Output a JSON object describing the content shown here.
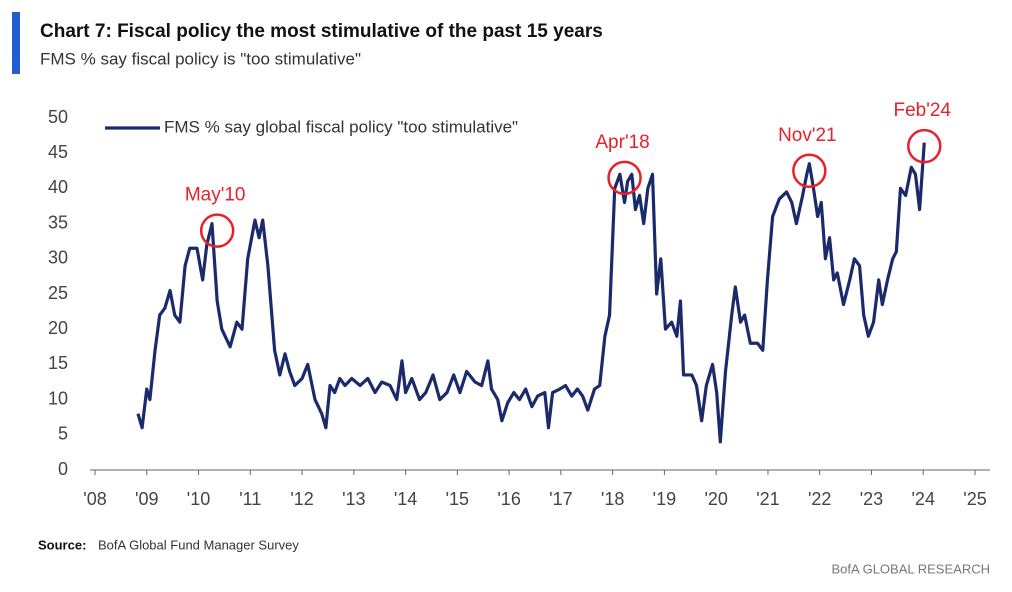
{
  "chart_data": {
    "type": "line",
    "title": "Chart 7: Fiscal policy the most stimulative of the past 15 years",
    "subtitle": "FMS % say fiscal policy is \"too stimulative\"",
    "source_label": "Source:",
    "source": "BofA Global Fund Manager Survey",
    "brand": "BofA GLOBAL RESEARCH",
    "legend": "top-left",
    "xlim": [
      2008,
      2025
    ],
    "xticks": [
      {
        "value": 2008,
        "label": "'08"
      },
      {
        "value": 2009,
        "label": "'09"
      },
      {
        "value": 2010,
        "label": "'10"
      },
      {
        "value": 2011,
        "label": "'11"
      },
      {
        "value": 2012,
        "label": "'12"
      },
      {
        "value": 2013,
        "label": "'13"
      },
      {
        "value": 2014,
        "label": "'14"
      },
      {
        "value": 2015,
        "label": "'15"
      },
      {
        "value": 2016,
        "label": "'16"
      },
      {
        "value": 2017,
        "label": "'17"
      },
      {
        "value": 2018,
        "label": "'18"
      },
      {
        "value": 2019,
        "label": "'19"
      },
      {
        "value": 2020,
        "label": "'20"
      },
      {
        "value": 2021,
        "label": "'21"
      },
      {
        "value": 2022,
        "label": "'22"
      },
      {
        "value": 2023,
        "label": "'23"
      },
      {
        "value": 2024,
        "label": "'24"
      },
      {
        "value": 2025,
        "label": "'25"
      }
    ],
    "ylim": [
      0,
      50
    ],
    "yticks": [
      0,
      5,
      10,
      15,
      20,
      25,
      30,
      35,
      40,
      45,
      50
    ],
    "x": [
      2008.83,
      2008.91,
      2009.0,
      2009.06,
      2009.16,
      2009.25,
      2009.35,
      2009.45,
      2009.54,
      2009.64,
      2009.74,
      2009.83,
      2009.97,
      2010.08,
      2010.16,
      2010.26,
      2010.36,
      2010.45,
      2010.61,
      2010.74,
      2010.84,
      2010.95,
      2011.09,
      2011.17,
      2011.24,
      2011.34,
      2011.47,
      2011.57,
      2011.67,
      2011.76,
      2011.86,
      2012.0,
      2012.11,
      2012.25,
      2012.38,
      2012.46,
      2012.54,
      2012.63,
      2012.73,
      2012.83,
      2012.96,
      2013.12,
      2013.27,
      2013.41,
      2013.54,
      2013.7,
      2013.83,
      2013.93,
      2014.0,
      2014.12,
      2014.27,
      2014.39,
      2014.53,
      2014.66,
      2014.8,
      2014.93,
      2015.05,
      2015.18,
      2015.34,
      2015.47,
      2015.59,
      2015.66,
      2015.78,
      2015.86,
      2015.97,
      2016.09,
      2016.2,
      2016.32,
      2016.44,
      2016.55,
      2016.69,
      2016.76,
      2016.84,
      2016.98,
      2017.09,
      2017.21,
      2017.32,
      2017.42,
      2017.52,
      2017.65,
      2017.75,
      2017.85,
      2017.94,
      2018.04,
      2018.14,
      2018.23,
      2018.29,
      2018.37,
      2018.44,
      2018.52,
      2018.6,
      2018.68,
      2018.77,
      2018.85,
      2018.93,
      2019.02,
      2019.14,
      2019.24,
      2019.31,
      2019.37,
      2019.53,
      2019.62,
      2019.72,
      2019.81,
      2019.93,
      2020.01,
      2020.08,
      2020.18,
      2020.3,
      2020.37,
      2020.47,
      2020.55,
      2020.66,
      2020.8,
      2020.9,
      2020.99,
      2021.09,
      2021.22,
      2021.36,
      2021.46,
      2021.55,
      2021.67,
      2021.75,
      2021.8,
      2021.88,
      2021.96,
      2022.03,
      2022.11,
      2022.19,
      2022.27,
      2022.34,
      2022.46,
      2022.58,
      2022.67,
      2022.77,
      2022.85,
      2022.94,
      2023.04,
      2023.14,
      2023.21,
      2023.31,
      2023.41,
      2023.48,
      2023.56,
      2023.66,
      2023.77,
      2023.85,
      2023.93,
      2024.02
    ],
    "series": [
      {
        "name": "FMS % say global fiscal policy \"too stimulative\"",
        "color": "#1b2a6b",
        "values": [
          8,
          6,
          11.5,
          10,
          17,
          22,
          23,
          25.5,
          22,
          21,
          29,
          31.5,
          31.5,
          27,
          32,
          35,
          24,
          20,
          17.5,
          21,
          20,
          30,
          35.5,
          33,
          35.5,
          29,
          17,
          13.5,
          16.5,
          14,
          12,
          13,
          15,
          10,
          8,
          6,
          12,
          11,
          13,
          12,
          13,
          12,
          13,
          11,
          12.5,
          12,
          10,
          15.5,
          11,
          13,
          10,
          11,
          13.5,
          10,
          11,
          13.5,
          11,
          14,
          12.5,
          12,
          15.5,
          11.5,
          10,
          7,
          9.5,
          11,
          10,
          11.5,
          9,
          10.5,
          11,
          6,
          11,
          11.5,
          12,
          10.5,
          11.5,
          10.5,
          8.5,
          11.5,
          12,
          19,
          22,
          40,
          42,
          38,
          41,
          42,
          37,
          39,
          35,
          40,
          42,
          25,
          30,
          20,
          21,
          19,
          24,
          13.5,
          13.5,
          12,
          7,
          12,
          15,
          11,
          4,
          14,
          22,
          26,
          21,
          22,
          18,
          18,
          17,
          27,
          36,
          38.5,
          39.5,
          38,
          35,
          39,
          42,
          43.5,
          40,
          36,
          38,
          30,
          33,
          27,
          28,
          23.5,
          27,
          30,
          29,
          22,
          19,
          21,
          27,
          23.5,
          27,
          30,
          31,
          40,
          39,
          43,
          42,
          37,
          46.5
        ]
      }
    ],
    "annotations": [
      {
        "text": "May'10",
        "x": 2010.36,
        "y": 34
      },
      {
        "text": "Apr'18",
        "x": 2018.23,
        "y": 41.5
      },
      {
        "text": "Nov'21",
        "x": 2021.8,
        "y": 42.5
      },
      {
        "text": "Feb'24",
        "x": 2024.02,
        "y": 46
      }
    ]
  }
}
